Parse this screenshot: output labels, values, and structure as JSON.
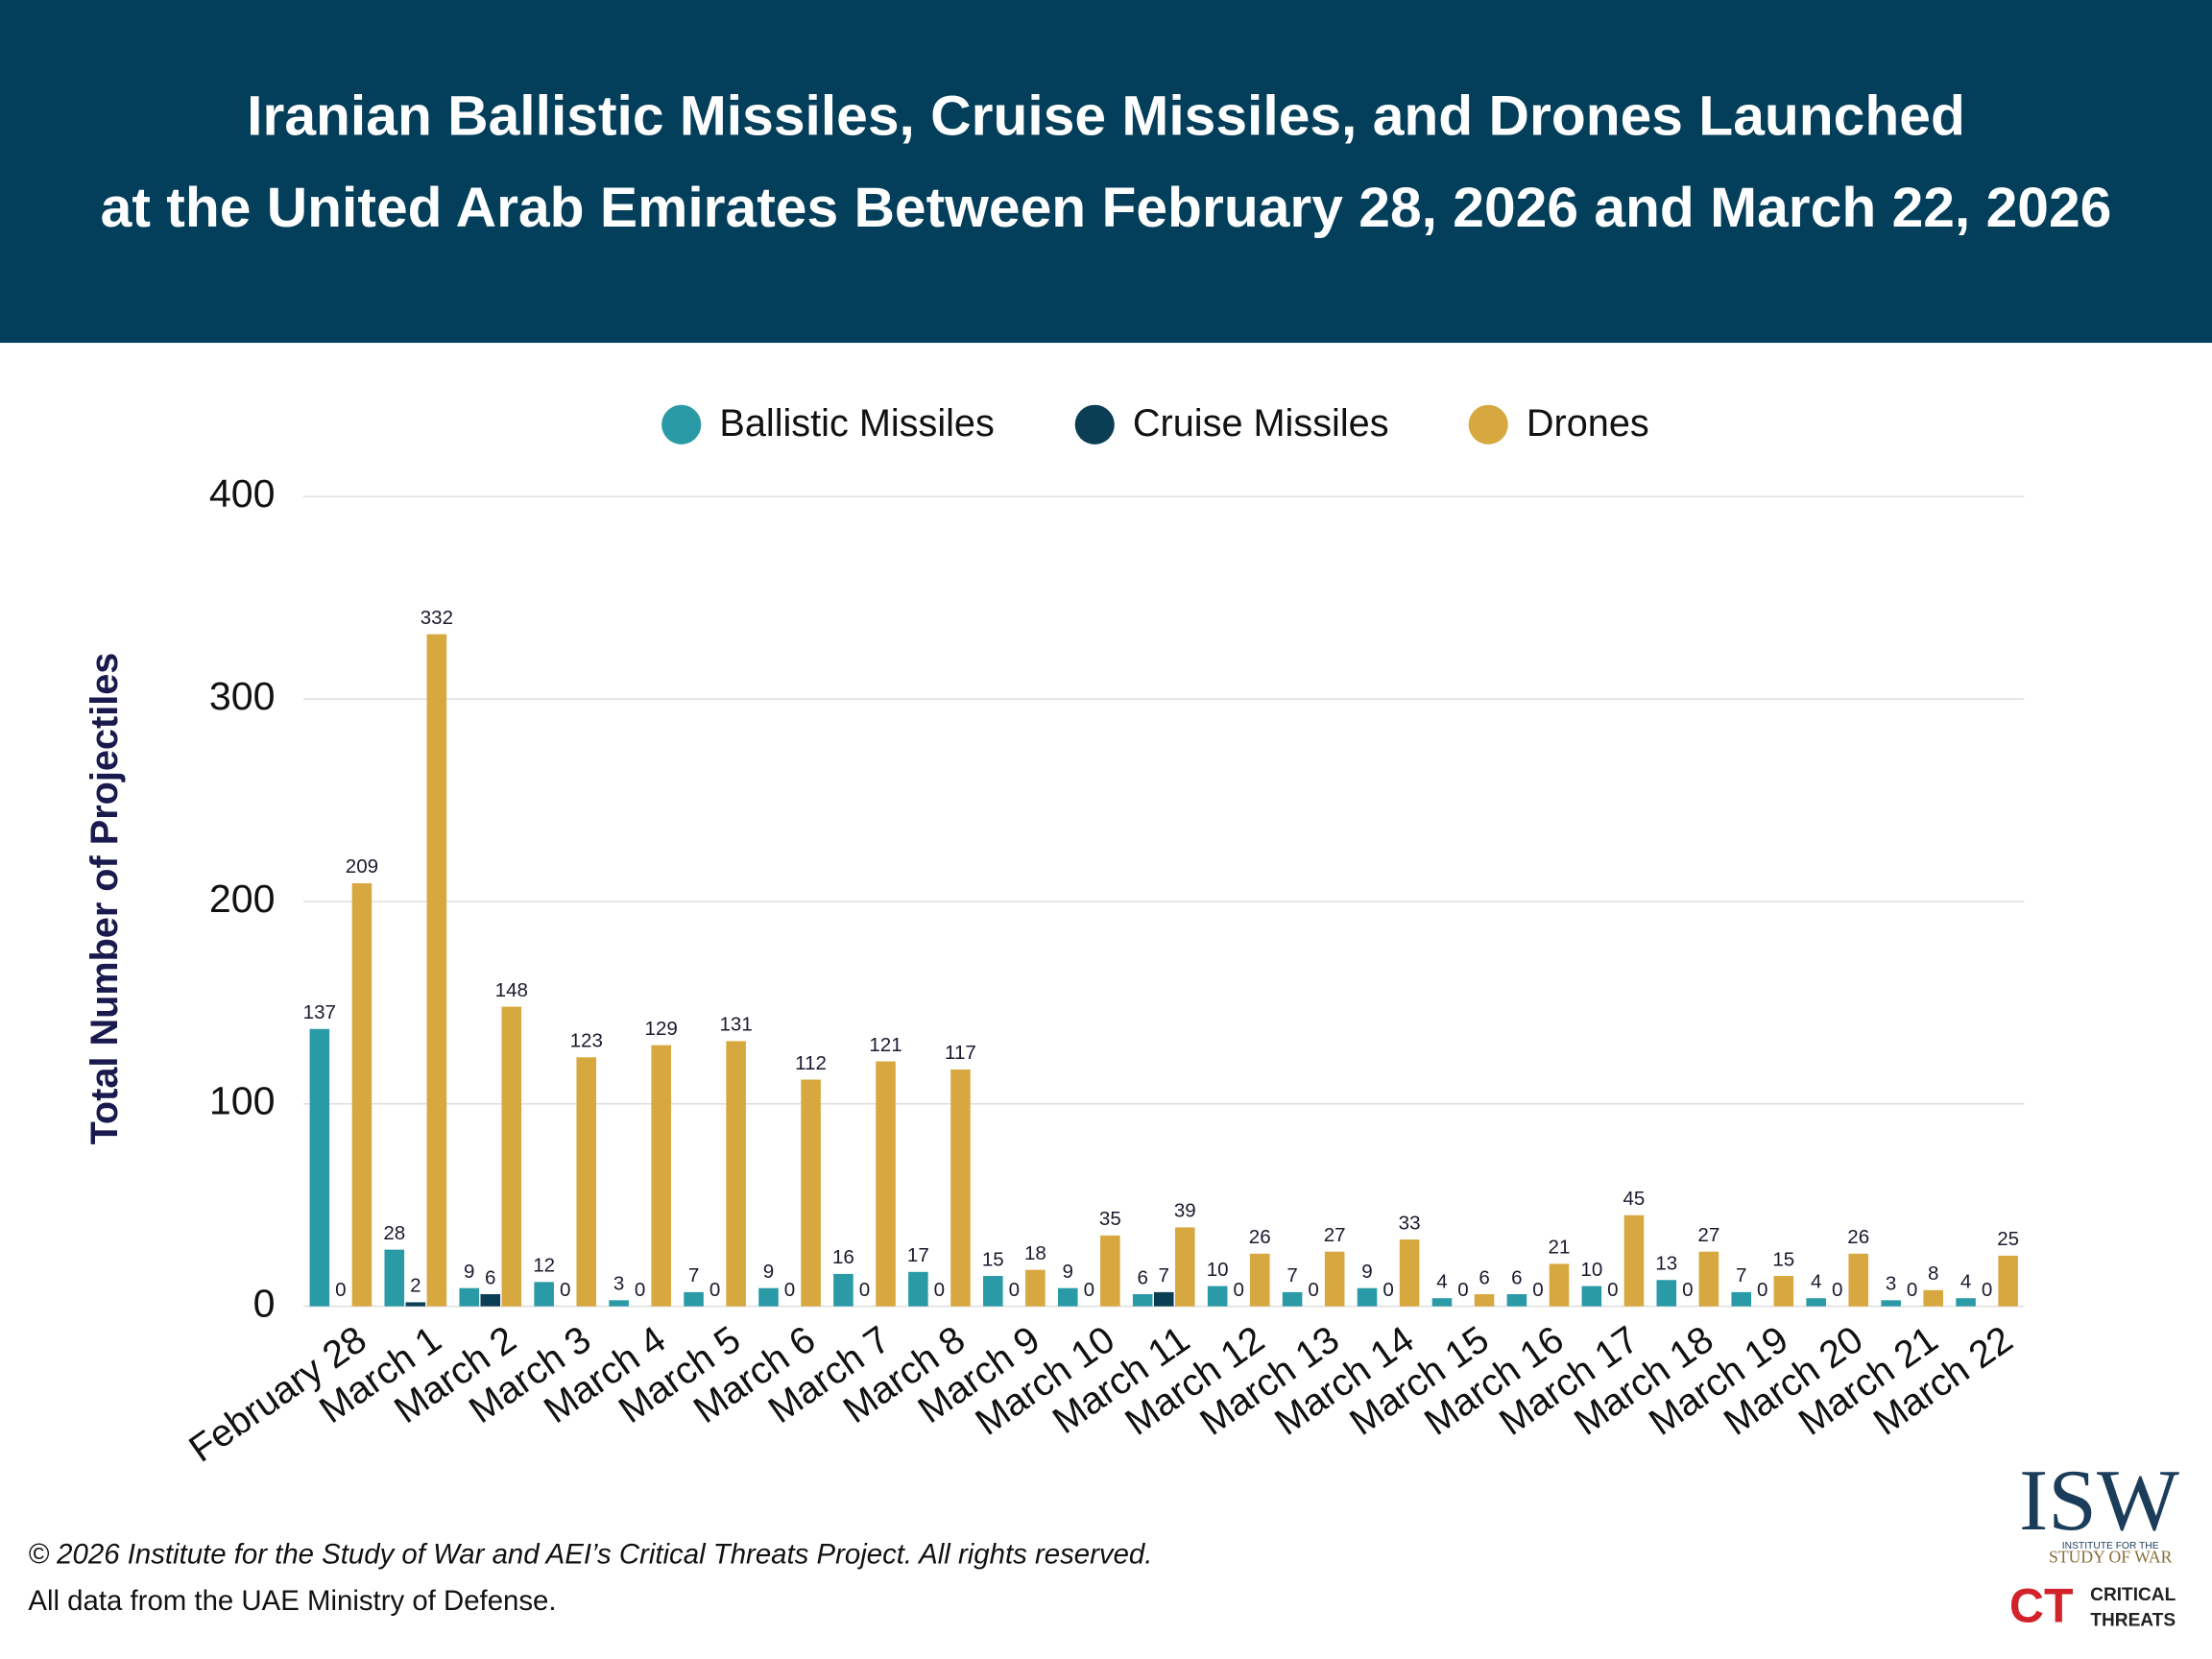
{
  "chart_data": {
    "type": "bar",
    "title_lines": [
      "Iranian Ballistic Missiles, Cruise Missiles, and Drones Launched",
      "at the United Arab Emirates Between February 28, 2026 and March 22, 2026"
    ],
    "y_label": "Total Number of Projectiles",
    "categories": [
      "February 28",
      "March 1",
      "March 2",
      "March 3",
      "March 4",
      "March 5",
      "March 6",
      "March 7",
      "March 8",
      "March 9",
      "March 10",
      "March 11",
      "March 12",
      "March 13",
      "March 14",
      "March 15",
      "March 16",
      "March 17",
      "March 18",
      "March 19",
      "March 20",
      "March 21",
      "March 22"
    ],
    "series": [
      {
        "name": "Ballistic Missiles",
        "color": "#2a9aa6",
        "values": [
          137,
          28,
          9,
          12,
          3,
          7,
          9,
          16,
          17,
          15,
          9,
          6,
          10,
          7,
          9,
          4,
          6,
          10,
          13,
          7,
          4,
          3,
          4
        ]
      },
      {
        "name": "Cruise Missiles",
        "color": "#0b3d55",
        "values": [
          0,
          2,
          6,
          0,
          0,
          0,
          0,
          0,
          0,
          0,
          0,
          7,
          0,
          0,
          0,
          0,
          0,
          0,
          0,
          0,
          0,
          0,
          0
        ]
      },
      {
        "name": "Drones",
        "color": "#d8a840",
        "values": [
          209,
          332,
          148,
          123,
          129,
          131,
          112,
          121,
          117,
          18,
          35,
          39,
          26,
          27,
          33,
          6,
          21,
          45,
          27,
          15,
          26,
          8,
          25
        ]
      }
    ],
    "ylim": [
      0,
      400
    ],
    "yticks": [
      0,
      100,
      200,
      300,
      400
    ],
    "grid": true,
    "legend": "top",
    "footer": [
      "© 2026 Institute for the Study of War and AEI’s Critical Threats Project. All rights reserved.",
      "All data from the UAE Ministry of Defense."
    ],
    "logos": {
      "isw": "ISW",
      "isw_sub1": "INSTITUTE FOR THE",
      "isw_sub2": "STUDY OF WAR",
      "ct": "CT",
      "ct_line1": "CRITICAL",
      "ct_line2": "THREATS"
    }
  }
}
